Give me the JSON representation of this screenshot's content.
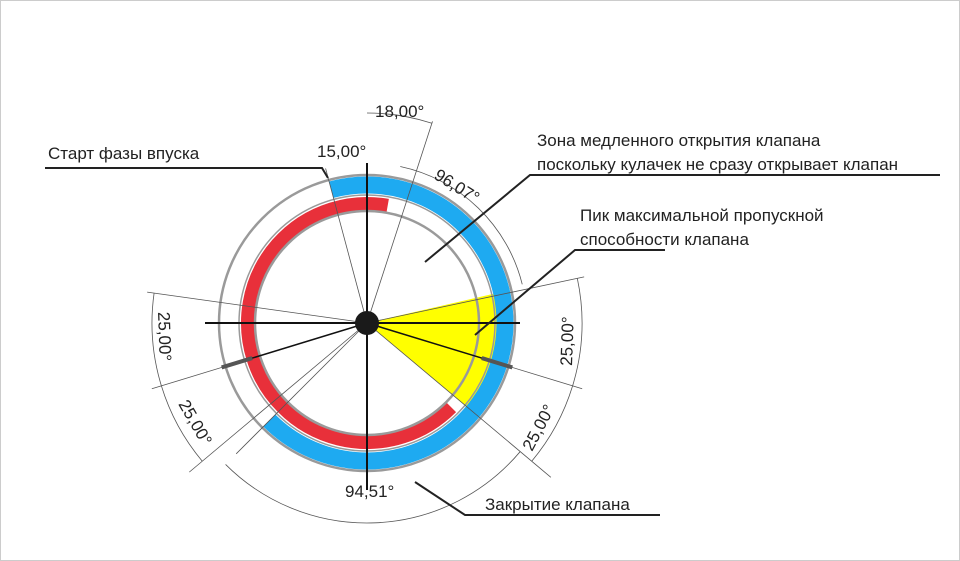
{
  "labels": {
    "intake_start": "Старт фазы впуска",
    "slow_zone": [
      "Зона медленного открытия клапана",
      "поскольку кулачек не сразу открывает клапан"
    ],
    "peak": [
      "Пик максимальной пропускной",
      "способности клапана"
    ],
    "closing": "Закрытие клапана"
  },
  "angles": {
    "top_right": "18,00°",
    "top_left": "15,00°",
    "slow_zone": "96,07°",
    "right_upper": "25,00°",
    "right_lower": "25,00°",
    "left_upper": "25,00°",
    "left_lower": "25,00°",
    "bottom": "94,51°"
  }
}
